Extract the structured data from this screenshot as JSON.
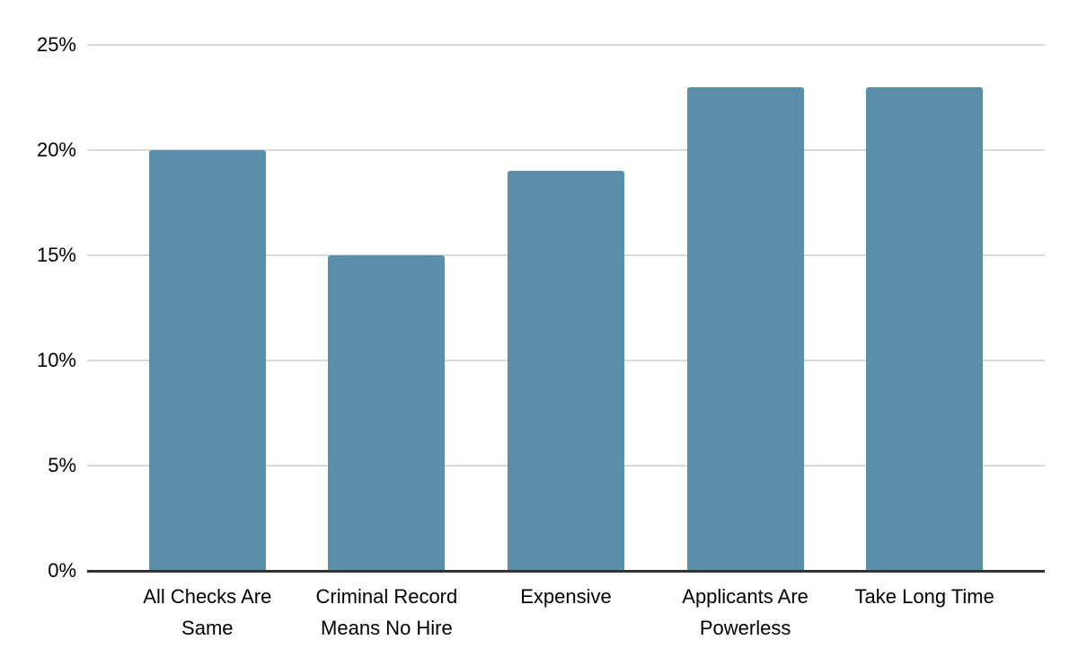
{
  "chart_data": {
    "type": "bar",
    "title": "",
    "xlabel": "",
    "ylabel": "",
    "categories": [
      "All Checks Are Same",
      "Criminal Record Means No Hire",
      "Expensive",
      "Applicants Are Powerless",
      "Take Long Time"
    ],
    "values": [
      20,
      15,
      19,
      23,
      23
    ],
    "unit": "%",
    "ylim": [
      0,
      25
    ],
    "ytick_step": 5,
    "ytick_labels": [
      "0%",
      "5%",
      "10%",
      "15%",
      "20%",
      "25%"
    ],
    "grid": true,
    "legend": false,
    "colors": {
      "bar": "#5b8ea8",
      "gridline": "#d9d9d9",
      "axis_line": "#333333",
      "text": "#000000",
      "background": "#ffffff"
    }
  }
}
